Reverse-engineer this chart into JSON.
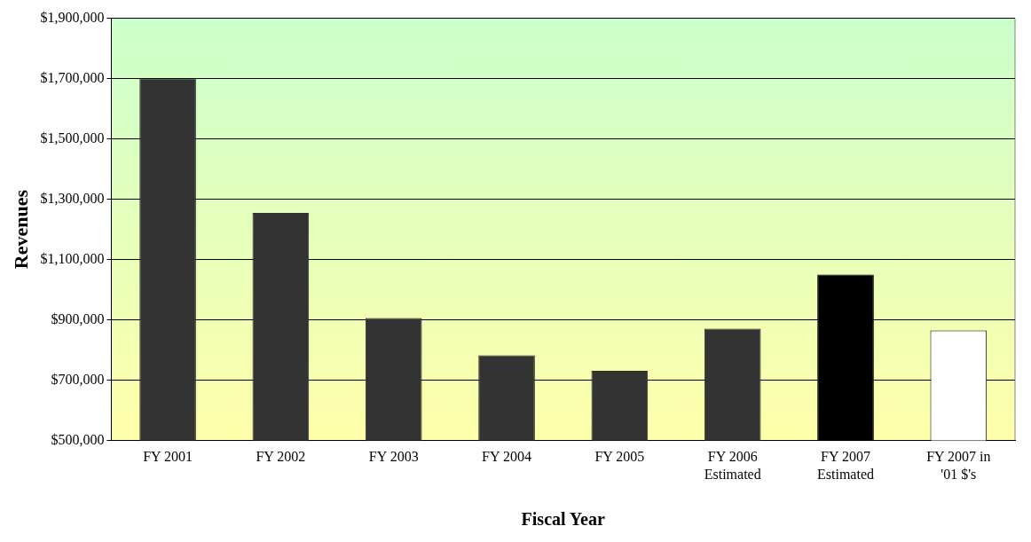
{
  "chart_data": {
    "type": "bar",
    "xlabel": "Fiscal Year",
    "ylabel": "Revenues",
    "categories": [
      "FY 2001",
      "FY 2002",
      "FY 2003",
      "FY 2004",
      "FY 2005",
      "FY 2006 Estimated",
      "FY 2007 Estimated",
      "FY 2007 in '01 $'s"
    ],
    "values": [
      1700000,
      1255000,
      906000,
      783000,
      731000,
      871000,
      1050000,
      865000
    ],
    "colors": [
      "#333333",
      "#333333",
      "#333333",
      "#333333",
      "#333333",
      "#333333",
      "#000000",
      "#ffffff"
    ],
    "ylim": [
      500000,
      1900000
    ],
    "yticks": [
      {
        "value": 500000,
        "label": "$500,000"
      },
      {
        "value": 700000,
        "label": "$700,000"
      },
      {
        "value": 900000,
        "label": "$900,000"
      },
      {
        "value": 1100000,
        "label": "$1,100,000"
      },
      {
        "value": 1300000,
        "label": "$1,300,000"
      },
      {
        "value": 1500000,
        "label": "$1,500,000"
      },
      {
        "value": 1700000,
        "label": "$1,700,000"
      },
      {
        "value": 1900000,
        "label": "$1,900,000"
      }
    ],
    "grid": "y"
  }
}
